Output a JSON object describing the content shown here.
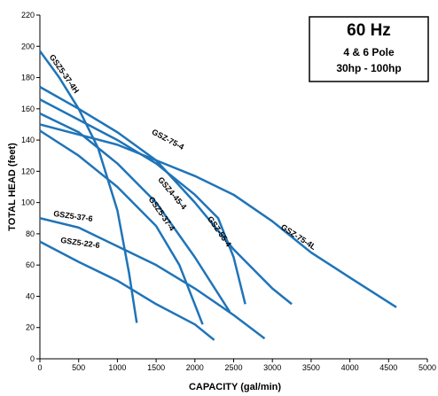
{
  "chart_data": {
    "type": "line",
    "title": "60 Hz",
    "subtitle": "4 & 6 Pole",
    "note": "30hp - 100hp",
    "xlabel": "CAPACITY (gal/min)",
    "ylabel": "TOTAL HEAD (feet)",
    "xlim": [
      0,
      5000
    ],
    "ylim": [
      0,
      220
    ],
    "xticks": [
      0,
      500,
      1000,
      1500,
      2000,
      2500,
      3000,
      3500,
      4000,
      4500,
      5000
    ],
    "yticks": [
      0,
      20,
      40,
      60,
      80,
      100,
      120,
      140,
      160,
      180,
      200,
      220
    ],
    "grid": false,
    "series": [
      {
        "name": "GSZ5-37-4H",
        "color": "#1f74b8",
        "x": [
          0,
          250,
          500,
          750,
          1000,
          1150,
          1250
        ],
        "values": [
          197,
          180,
          160,
          135,
          95,
          55,
          23
        ]
      },
      {
        "name": "GSZ-75-4",
        "color": "#1f74b8",
        "x": [
          0,
          500,
          1000,
          1500,
          2000,
          2500,
          3000,
          3250
        ],
        "values": [
          174,
          160,
          145,
          127,
          100,
          70,
          45,
          35
        ]
      },
      {
        "name": "GSZ-55-4",
        "color": "#1f74b8",
        "x": [
          0,
          1000,
          1500,
          2000,
          2300,
          2500,
          2650
        ],
        "values": [
          166,
          140,
          125,
          105,
          90,
          65,
          35
        ]
      },
      {
        "name": "GSZ4-45-4",
        "color": "#1f74b8",
        "x": [
          0,
          500,
          1000,
          1500,
          2000,
          2450
        ],
        "values": [
          157,
          145,
          125,
          100,
          65,
          30
        ]
      },
      {
        "name": "GSZ5-37-4",
        "color": "#1f74b8",
        "x": [
          0,
          500,
          1000,
          1500,
          1800,
          2100
        ],
        "values": [
          146,
          130,
          110,
          85,
          60,
          22
        ]
      },
      {
        "name": "GSZ-75-4L",
        "color": "#1f74b8",
        "x": [
          0,
          1000,
          1500,
          2000,
          2500,
          3000,
          3500,
          4000,
          4600
        ],
        "values": [
          150,
          137,
          127,
          117,
          105,
          88,
          68,
          52,
          33
        ]
      },
      {
        "name": "GSZ5-37-6",
        "color": "#1f74b8",
        "x": [
          0,
          500,
          1000,
          1500,
          2000,
          2500,
          2900
        ],
        "values": [
          90,
          84,
          72,
          60,
          45,
          28,
          13
        ]
      },
      {
        "name": "GSZ5-22-6",
        "color": "#1f74b8",
        "x": [
          0,
          500,
          1000,
          1500,
          2000,
          2250
        ],
        "values": [
          75,
          62,
          50,
          35,
          22,
          12
        ]
      }
    ]
  }
}
